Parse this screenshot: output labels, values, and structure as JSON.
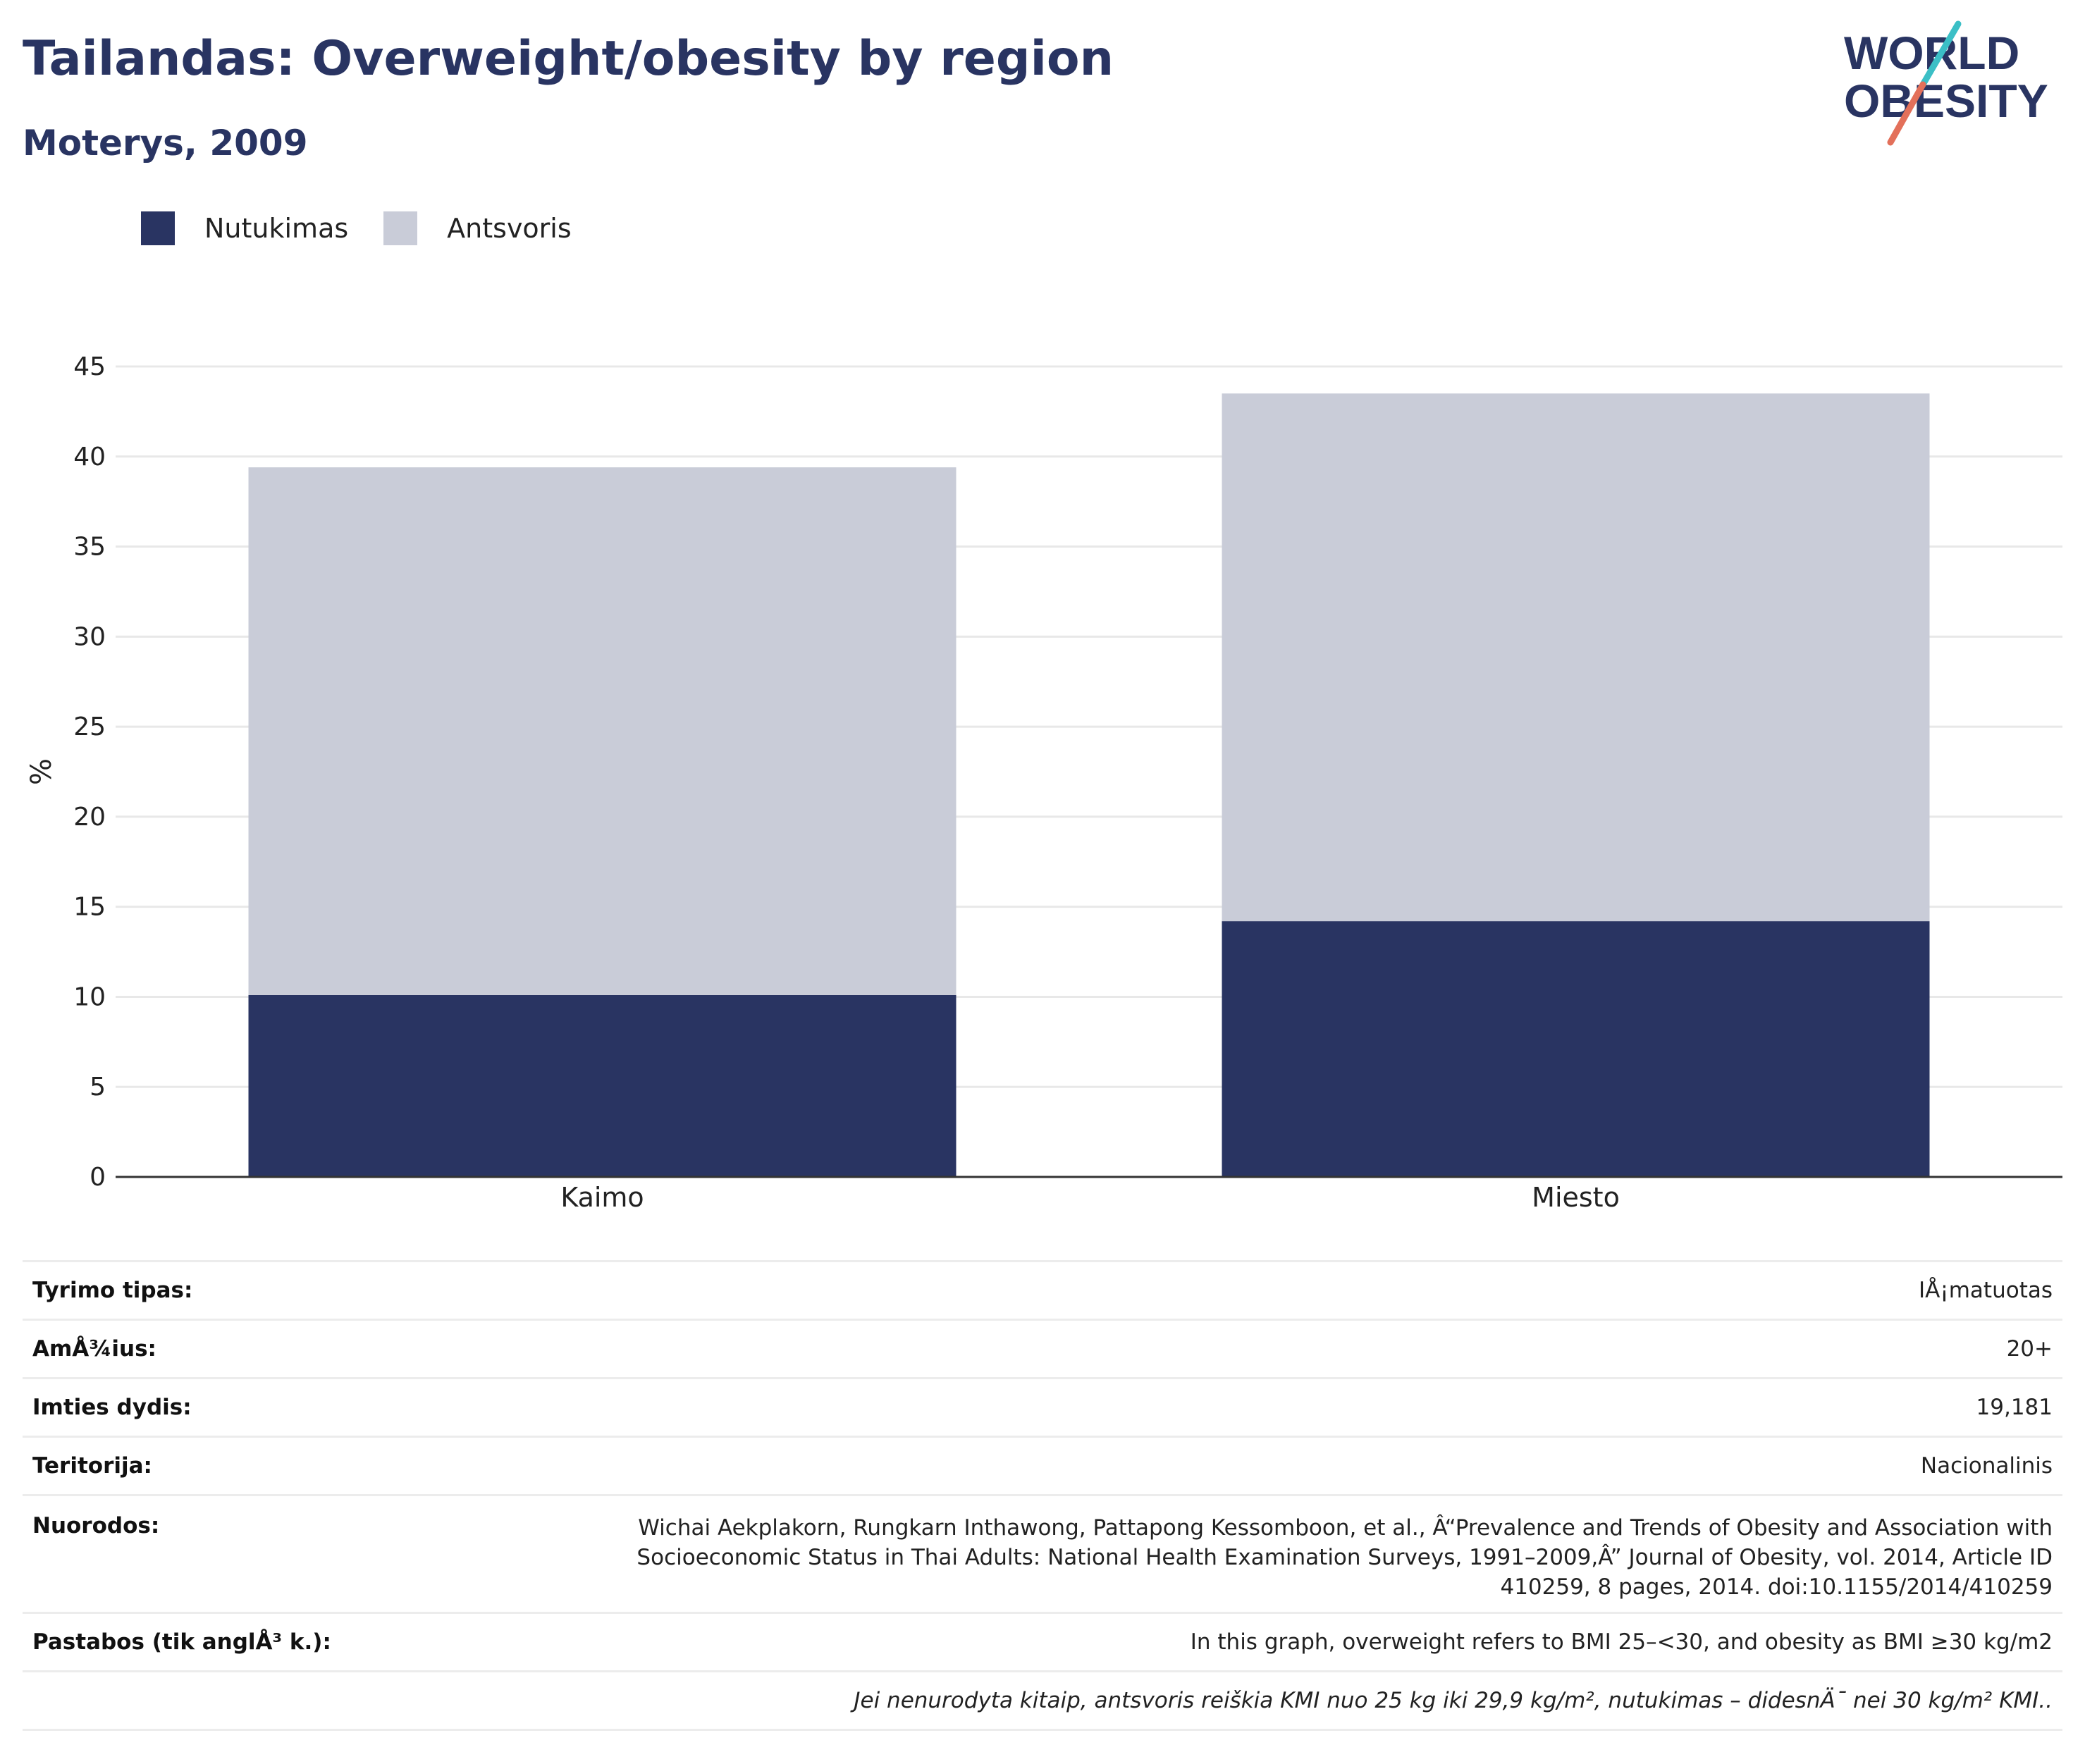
{
  "header": {
    "title": "Tailandas: Overweight/obesity by region",
    "subtitle": "Moterys, 2009"
  },
  "logo": {
    "line1": "WORLD",
    "line2": "OBESITY",
    "colors": {
      "text": "#293462",
      "slash_top": "#3bbfc6",
      "slash_bottom": "#e3705a"
    }
  },
  "colors": {
    "obesity": "#293462",
    "overweight": "#c9ccd8",
    "grid": "#e8e8e8",
    "axis": "#333333"
  },
  "chart_data": {
    "type": "bar",
    "stacked": true,
    "categories": [
      "Kaimo",
      "Miesto"
    ],
    "series": [
      {
        "name": "Nutukimas",
        "values": [
          10.1,
          14.2
        ],
        "color": "#293462"
      },
      {
        "name": "Antsvoris",
        "values": [
          29.3,
          29.3
        ],
        "color": "#c9ccd8"
      }
    ],
    "ylabel": "%",
    "ylim": [
      0,
      45
    ],
    "yticks": [
      0,
      5,
      10,
      15,
      20,
      25,
      30,
      35,
      40,
      45
    ],
    "grid": true,
    "legend_position": "top-left"
  },
  "info": {
    "rows": [
      {
        "label": "Tyrimo tipas:",
        "value": "IÅ¡matuotas"
      },
      {
        "label": "AmÅ¾ius:",
        "value": "20+"
      },
      {
        "label": "Imties dydis:",
        "value": "19,181"
      },
      {
        "label": "Teritorija:",
        "value": "Nacionalinis"
      }
    ],
    "references_label": "Nuorodos:",
    "references_value": "Wichai Aekplakorn, Rungkarn Inthawong, Pattapong Kessomboon, et al., Â“Prevalence and Trends of Obesity and Association with Socioeconomic Status in Thai Adults: National Health Examination Surveys, 1991–2009,Â” Journal of Obesity, vol. 2014, Article ID 410259, 8 pages, 2014. doi:10.1155/2014/410259",
    "notes_label": "Pastabos (tik anglÅ³ k.):",
    "notes_value": "In this graph, overweight refers to BMI 25–<30, and obesity as BMI ≥30 kg/m2",
    "footnote": "Jei nenurodyta kitaip, antsvoris reiškia KMI nuo 25 kg iki 29,9 kg/m², nutukimas – didesnÄ¯ nei 30 kg/m² KMI.."
  }
}
